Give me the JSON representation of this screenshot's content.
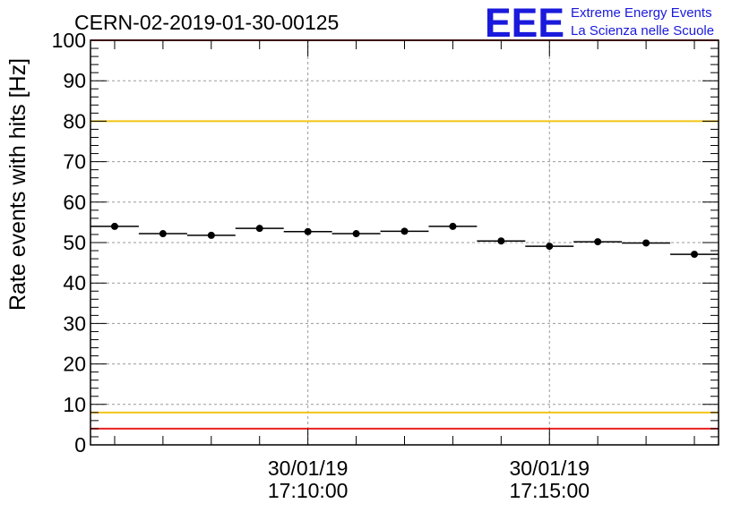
{
  "header": {
    "run_title": "CERN-02-2019-01-30-00125",
    "logo_text": "EEE",
    "logo_line1": "Extreme Energy Events",
    "logo_line2": "La Scienza nelle Scuole"
  },
  "colors": {
    "logo_blue": "#1a1adc",
    "limit_red": "#e8211f",
    "threshold_yellow": "#f2c418",
    "markers": "#000000",
    "grid": "#9a9a9a"
  },
  "chart_data": {
    "type": "scatter",
    "title": "CERN-02-2019-01-30-00125",
    "xlabel": "",
    "ylabel": "Rate events with hits [Hz]",
    "ylim": [
      0,
      100
    ],
    "xlim": [
      "2019-01-30 17:05:30",
      "2019-01-30 17:18:30"
    ],
    "x_ticks": [
      {
        "at": "2019-01-30 17:10:00",
        "date": "30/01/19",
        "time": "17:10:00"
      },
      {
        "at": "2019-01-30 17:15:00",
        "date": "30/01/19",
        "time": "17:15:00"
      }
    ],
    "y_ticks": [
      0,
      10,
      20,
      30,
      40,
      50,
      60,
      70,
      80,
      90,
      100
    ],
    "grid": true,
    "series": [
      {
        "x": [
          "2019-01-30 17:06:00",
          "2019-01-30 17:07:00",
          "2019-01-30 17:08:00",
          "2019-01-30 17:09:00",
          "2019-01-30 17:10:00",
          "2019-01-30 17:11:00",
          "2019-01-30 17:12:00",
          "2019-01-30 17:13:00",
          "2019-01-30 17:14:00",
          "2019-01-30 17:15:00",
          "2019-01-30 17:16:00",
          "2019-01-30 17:17:00",
          "2019-01-30 17:18:00"
        ],
        "values": [
          54.0,
          52.2,
          51.8,
          53.5,
          52.7,
          52.2,
          52.8,
          54.0,
          50.4,
          49.1,
          50.2,
          49.9,
          47.1
        ],
        "bin_width_minutes": 1
      }
    ],
    "reference_lines": [
      {
        "y": 100,
        "color": "#e8211f"
      },
      {
        "y": 80,
        "color": "#f2c418"
      },
      {
        "y": 8,
        "color": "#f2c418"
      },
      {
        "y": 4,
        "color": "#e8211f"
      }
    ]
  }
}
